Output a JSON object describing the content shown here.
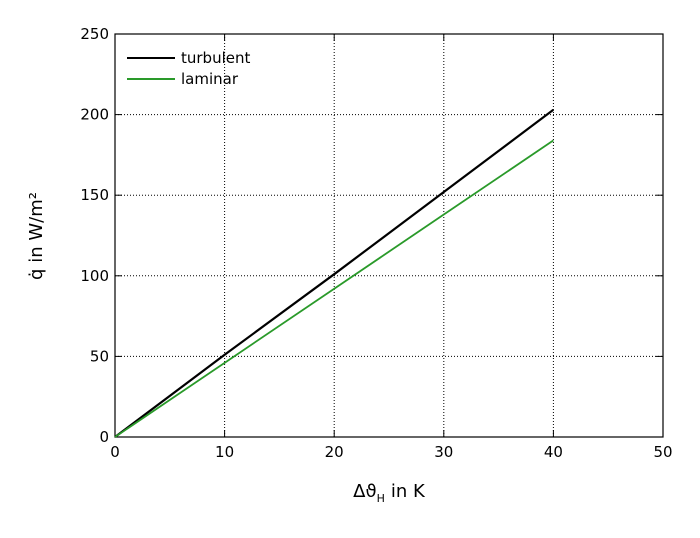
{
  "chart_data": {
    "type": "line",
    "x_label": [
      "Δϑ",
      "H",
      "in K"
    ],
    "y_label": "q̇ in W/m²",
    "x": [
      0,
      10,
      20,
      30,
      40
    ],
    "series": [
      {
        "name": "turbulent",
        "color": "#000000",
        "values": [
          0,
          51,
          101,
          152,
          203
        ]
      },
      {
        "name": "laminar",
        "color": "#2a9a2a",
        "values": [
          0,
          46,
          92,
          138,
          184
        ]
      }
    ],
    "xlim": [
      0,
      50
    ],
    "xticks": [
      0,
      10,
      20,
      30,
      40,
      50
    ],
    "ylim": [
      0,
      250
    ],
    "yticks": [
      0,
      50,
      100,
      150,
      200,
      250
    ],
    "grid": true,
    "legend": "top-left"
  }
}
